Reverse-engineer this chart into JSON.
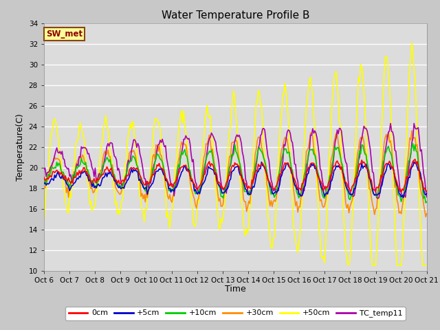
{
  "title": "Water Temperature Profile B",
  "xlabel": "Time",
  "ylabel": "Temperature(C)",
  "ylim": [
    10,
    34
  ],
  "yticks": [
    10,
    12,
    14,
    16,
    18,
    20,
    22,
    24,
    26,
    28,
    30,
    32,
    34
  ],
  "x_labels": [
    "Oct 6",
    "Oct 7",
    "Oct 8",
    "Oct 9",
    "Oct 10",
    "Oct 11",
    "Oct 12",
    "Oct 13",
    "Oct 14",
    "Oct 15",
    "Oct 16",
    "Oct 17",
    "Oct 18",
    "Oct 19",
    "Oct 20",
    "Oct 21"
  ],
  "annotation_text": "SW_met",
  "annotation_color": "#8B0000",
  "annotation_bg": "#FFFF99",
  "annotation_border": "#8B4513",
  "series_colors": {
    "0cm": "#FF0000",
    "+5cm": "#0000CC",
    "+10cm": "#00CC00",
    "+30cm": "#FF8C00",
    "+50cm": "#FFFF00",
    "TC_temp11": "#AA00AA"
  },
  "bg_color": "#DCDCDC",
  "grid_color": "#FFFFFF",
  "title_fontsize": 11,
  "figsize": [
    6.4,
    4.8
  ],
  "dpi": 100
}
